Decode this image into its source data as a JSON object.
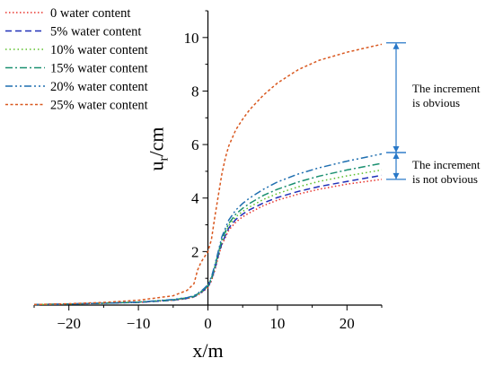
{
  "chart_data": {
    "type": "line",
    "xlabel": "x/m",
    "ylabel_main": "u",
    "ylabel_sub": "r",
    "ylabel_unit": "/cm",
    "xlim": [
      -25,
      25
    ],
    "ylim": [
      0,
      11
    ],
    "xticks": [
      -20,
      -10,
      0,
      10,
      20
    ],
    "yticks": [
      2,
      4,
      6,
      8,
      10
    ],
    "grid": false,
    "legend_position": "top-left",
    "series": [
      {
        "name": "0 water content",
        "color": "#e8332c",
        "dash": "1.5,2.5",
        "x": [
          -25,
          -20,
          -15,
          -10,
          -5,
          -3,
          -2,
          -1,
          -0.5,
          0,
          0.5,
          1,
          1.5,
          2,
          3,
          4,
          5,
          6,
          8,
          10,
          13,
          16,
          20,
          25
        ],
        "y": [
          0.02,
          0.04,
          0.07,
          0.1,
          0.18,
          0.24,
          0.3,
          0.45,
          0.55,
          0.65,
          0.9,
          1.3,
          1.8,
          2.25,
          2.8,
          3.1,
          3.3,
          3.45,
          3.72,
          3.92,
          4.15,
          4.33,
          4.52,
          4.7
        ]
      },
      {
        "name": "5% water content",
        "color": "#2030b8",
        "dash": "7,4",
        "x": [
          -25,
          -20,
          -15,
          -10,
          -5,
          -3,
          -2,
          -1,
          -0.5,
          0,
          0.5,
          1,
          1.5,
          2,
          3,
          4,
          5,
          6,
          8,
          10,
          13,
          16,
          20,
          25
        ],
        "y": [
          0.02,
          0.04,
          0.07,
          0.1,
          0.18,
          0.25,
          0.31,
          0.47,
          0.57,
          0.68,
          0.95,
          1.35,
          1.85,
          2.3,
          2.88,
          3.2,
          3.4,
          3.56,
          3.82,
          4.02,
          4.25,
          4.43,
          4.62,
          4.85
        ]
      },
      {
        "name": "10% water content",
        "color": "#5cbf2a",
        "dash": "1.5,3",
        "x": [
          -25,
          -20,
          -15,
          -10,
          -5,
          -3,
          -2,
          -1,
          -0.5,
          0,
          0.5,
          1,
          1.5,
          2,
          3,
          4,
          5,
          6,
          8,
          10,
          13,
          16,
          20,
          25
        ],
        "y": [
          0.02,
          0.04,
          0.07,
          0.11,
          0.19,
          0.26,
          0.32,
          0.48,
          0.58,
          0.7,
          0.98,
          1.4,
          1.9,
          2.38,
          2.97,
          3.3,
          3.5,
          3.67,
          3.95,
          4.17,
          4.42,
          4.62,
          4.83,
          5.05
        ]
      },
      {
        "name": "15% water content",
        "color": "#1a9070",
        "dash": "8,3,2,3",
        "x": [
          -25,
          -20,
          -15,
          -10,
          -5,
          -3,
          -2,
          -1,
          -0.5,
          0,
          0.5,
          1,
          1.5,
          2,
          3,
          4,
          5,
          6,
          8,
          10,
          13,
          16,
          20,
          25
        ],
        "y": [
          0.02,
          0.04,
          0.07,
          0.11,
          0.2,
          0.27,
          0.33,
          0.5,
          0.6,
          0.72,
          1.0,
          1.45,
          1.95,
          2.45,
          3.05,
          3.4,
          3.62,
          3.8,
          4.1,
          4.33,
          4.6,
          4.82,
          5.05,
          5.3
        ]
      },
      {
        "name": "20% water content",
        "color": "#1f6fb0",
        "dash": "8,3,2,3,2,3",
        "x": [
          -25,
          -20,
          -15,
          -10,
          -5,
          -3,
          -2,
          -1,
          -0.5,
          0,
          0.5,
          1,
          1.5,
          2,
          3,
          4,
          5,
          6,
          8,
          10,
          13,
          16,
          20,
          25
        ],
        "y": [
          0.02,
          0.04,
          0.07,
          0.11,
          0.21,
          0.28,
          0.35,
          0.52,
          0.63,
          0.76,
          1.05,
          1.5,
          2.02,
          2.55,
          3.18,
          3.55,
          3.8,
          4.0,
          4.33,
          4.6,
          4.9,
          5.13,
          5.38,
          5.65
        ]
      },
      {
        "name": "25% water content",
        "color": "#d9581f",
        "dash": "3,2.5",
        "x": [
          -25,
          -20,
          -15,
          -10,
          -5,
          -3,
          -2,
          -1.5,
          -1,
          -0.5,
          0,
          0.5,
          1,
          1.5,
          2,
          2.5,
          3,
          4,
          5,
          6,
          8,
          10,
          13,
          16,
          20,
          25
        ],
        "y": [
          0.02,
          0.05,
          0.1,
          0.18,
          0.35,
          0.55,
          0.8,
          1.3,
          1.6,
          1.8,
          2.0,
          2.45,
          3.3,
          4.1,
          4.9,
          5.5,
          5.95,
          6.55,
          6.95,
          7.3,
          7.85,
          8.3,
          8.8,
          9.15,
          9.45,
          9.75
        ]
      }
    ],
    "annotations": [
      {
        "text_lines": [
          "The increment",
          "is obvious"
        ],
        "y_from": 5.7,
        "y_to": 9.8
      },
      {
        "text_lines": [
          "The increment",
          "is not obvious"
        ],
        "y_from": 4.7,
        "y_to": 5.7
      }
    ]
  }
}
